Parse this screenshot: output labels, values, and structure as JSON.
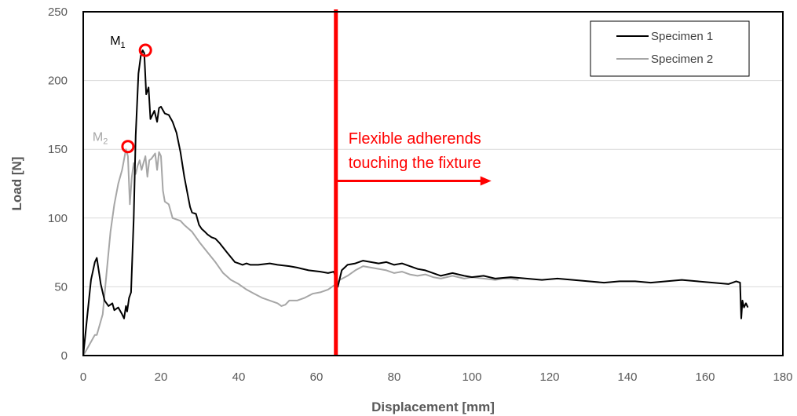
{
  "chart_data": {
    "type": "line",
    "title": "",
    "xlabel": "Displacement [mm]",
    "ylabel": "Load [N]",
    "xlim": [
      0,
      180
    ],
    "ylim": [
      0,
      250
    ],
    "xticks": [
      "0",
      "20",
      "40",
      "60",
      "80",
      "100",
      "120",
      "140",
      "160",
      "180"
    ],
    "yticks": [
      "0",
      "50",
      "100",
      "150",
      "200",
      "250"
    ],
    "grid": "horizontal",
    "legend_position": "top-right",
    "series": [
      {
        "name": "Specimen 1",
        "color": "#000000",
        "x": [
          0,
          1,
          2,
          3,
          3.5,
          4.5,
          5.5,
          6.5,
          7.5,
          8,
          9,
          10,
          10.5,
          11,
          11.3,
          11.8,
          12.3,
          13,
          13.5,
          14.2,
          14.8,
          15.3,
          15.7,
          16.2,
          16.8,
          17.3,
          17.8,
          18.3,
          19,
          19.5,
          20,
          21,
          22,
          23,
          24,
          25,
          26,
          27,
          27.5,
          28,
          29,
          29.8,
          30.5,
          31.3,
          32,
          33,
          34,
          35,
          37,
          39,
          40,
          41,
          42,
          43,
          45,
          48,
          50,
          53,
          55,
          58,
          61,
          63,
          64.5,
          65.5,
          66.5,
          68,
          70,
          72,
          74,
          76,
          78,
          80,
          82,
          84,
          86,
          88,
          90,
          92,
          95,
          98,
          100,
          103,
          106,
          110,
          114,
          118,
          122,
          126,
          130,
          134,
          138,
          142,
          146,
          150,
          154,
          158,
          162,
          166,
          168,
          169,
          169.3,
          169.6,
          170,
          170.5,
          171
        ],
        "y": [
          0,
          28,
          55,
          68,
          71,
          52,
          40,
          36,
          38,
          33,
          35,
          30,
          27,
          36,
          32,
          42,
          46,
          100,
          160,
          205,
          218,
          222,
          220,
          190,
          195,
          172,
          175,
          178,
          170,
          180,
          181,
          176,
          175,
          170,
          162,
          148,
          130,
          115,
          108,
          104,
          103,
          95,
          92,
          90,
          88,
          86,
          85,
          82,
          75,
          68,
          67,
          66,
          67,
          66,
          66,
          67,
          66,
          65,
          64,
          62,
          61,
          60,
          61,
          50,
          62,
          66,
          67,
          69,
          68,
          67,
          68,
          66,
          67,
          65,
          63,
          62,
          60,
          58,
          60,
          58,
          57,
          58,
          56,
          57,
          56,
          55,
          56,
          55,
          54,
          53,
          54,
          54,
          53,
          54,
          55,
          54,
          53,
          52,
          54,
          53,
          27,
          40,
          35,
          38,
          35
        ]
      },
      {
        "name": "Specimen 2",
        "color": "#a6a6a6",
        "x": [
          0,
          1,
          2,
          3,
          3.5,
          4,
          5,
          6,
          7,
          8,
          9,
          10,
          11,
          11.5,
          12,
          12.5,
          13,
          13.5,
          14,
          14.5,
          15,
          15.5,
          16,
          16.5,
          17,
          17.5,
          18,
          18.5,
          19,
          19.5,
          20,
          20.5,
          21,
          22,
          23,
          24,
          25,
          26,
          28,
          30,
          32,
          34,
          36,
          38,
          40,
          42,
          44,
          46,
          48,
          50,
          51,
          52,
          53,
          55,
          57,
          59,
          61,
          63,
          64,
          65,
          66,
          68,
          70,
          72,
          74,
          76,
          78,
          80,
          82,
          84,
          86,
          88,
          90,
          92,
          95,
          98,
          100,
          103,
          106,
          108,
          110,
          112
        ],
        "y": [
          0,
          5,
          10,
          15,
          15,
          20,
          30,
          60,
          90,
          110,
          125,
          135,
          150,
          145,
          110,
          130,
          140,
          132,
          138,
          142,
          135,
          140,
          145,
          130,
          142,
          143,
          145,
          147,
          135,
          148,
          145,
          120,
          112,
          110,
          100,
          99,
          98,
          95,
          90,
          82,
          75,
          68,
          60,
          55,
          52,
          48,
          45,
          42,
          40,
          38,
          36,
          37,
          40,
          40,
          42,
          45,
          46,
          48,
          50,
          52,
          55,
          58,
          62,
          65,
          64,
          63,
          62,
          60,
          61,
          59,
          58,
          59,
          57,
          56,
          58,
          56,
          57,
          56,
          55,
          56,
          56,
          55
        ]
      }
    ],
    "markers": [
      {
        "label_main": "M",
        "label_sub": "1",
        "x": 16,
        "y": 222,
        "color": "#000000"
      },
      {
        "label_main": "M",
        "label_sub": "2",
        "x": 11.5,
        "y": 152,
        "color": "#a6a6a6"
      }
    ],
    "annotation": {
      "line1": "Flexible adherends",
      "line2": "touching the fixture",
      "vline_x": 65,
      "arrow_to_x": 105,
      "arrow_y": 127,
      "color": "#ff0000"
    }
  }
}
